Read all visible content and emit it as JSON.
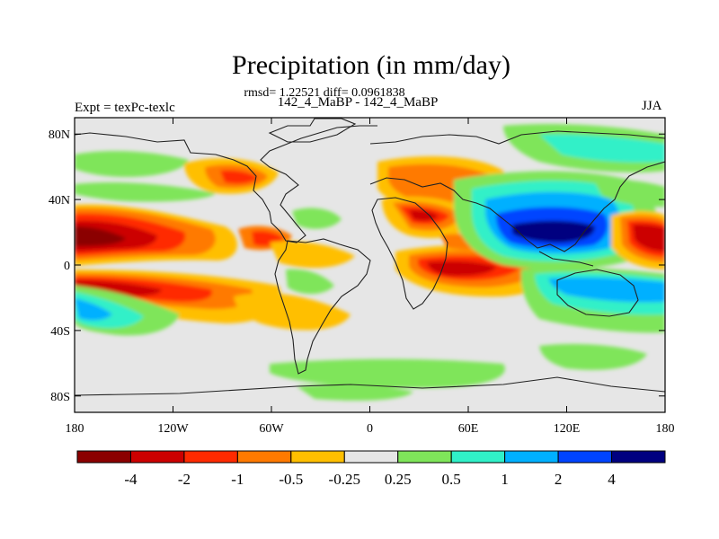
{
  "title": "Precipitation (in mm/day)",
  "stats_line": "rmsd= 1.22521 diff= 0.0961838",
  "subtitle": "142_4_MaBP - 142_4_MaBP",
  "experiment_label": "Expt = texPc-texlc",
  "season": "JJA",
  "y_axis": {
    "ticks": [
      {
        "label": "80N",
        "lat": 80
      },
      {
        "label": "40N",
        "lat": 40
      },
      {
        "label": "0",
        "lat": 0
      },
      {
        "label": "40S",
        "lat": -40
      },
      {
        "label": "80S",
        "lat": -80
      }
    ]
  },
  "x_axis": {
    "ticks": [
      {
        "label": "180",
        "lon": -180
      },
      {
        "label": "120W",
        "lon": -120
      },
      {
        "label": "60W",
        "lon": -60
      },
      {
        "label": "0",
        "lon": 0
      },
      {
        "label": "60E",
        "lon": 60
      },
      {
        "label": "120E",
        "lon": 120
      },
      {
        "label": "180",
        "lon": 180
      }
    ]
  },
  "colorbar": {
    "colors": [
      "#8b0000",
      "#cc0000",
      "#ff2a00",
      "#ff7a00",
      "#ffbf00",
      "#e6e6e6",
      "#7fe55a",
      "#30f0c8",
      "#00b0ff",
      "#0044ff",
      "#000080"
    ],
    "labels": [
      "-4",
      "-2",
      "-1",
      "-0.5",
      "-0.25",
      "0.25",
      "0.5",
      "1",
      "2",
      "4"
    ]
  },
  "chart_data": {
    "type": "heatmap",
    "title": "Precipitation (in mm/day)",
    "units": "mm/day",
    "lon_range": [
      -180,
      180
    ],
    "lat_range": [
      -90,
      90
    ],
    "levels": [
      -4,
      -2,
      -1,
      -0.5,
      -0.25,
      0.25,
      0.5,
      1,
      2,
      4
    ],
    "anomaly_regions": [
      {
        "name": "central-pacific-north-dry",
        "lon": [
          -180,
          -120
        ],
        "lat": [
          5,
          25
        ],
        "value": -4
      },
      {
        "name": "south-pacific-dry-band",
        "lon": [
          -180,
          -70
        ],
        "lat": [
          -20,
          -5
        ],
        "value": -2
      },
      {
        "name": "north-pacific-wet",
        "lon": [
          -180,
          -140
        ],
        "lat": [
          40,
          55
        ],
        "value": 0.5
      },
      {
        "name": "south-pacific-wet",
        "lon": [
          -180,
          -130
        ],
        "lat": [
          -40,
          -25
        ],
        "value": 1
      },
      {
        "name": "north-america-dry",
        "lon": [
          -120,
          -80
        ],
        "lat": [
          35,
          60
        ],
        "value": -0.5
      },
      {
        "name": "north-africa-dry",
        "lon": [
          10,
          50
        ],
        "lat": [
          15,
          35
        ],
        "value": -2
      },
      {
        "name": "east-africa-dry",
        "lon": [
          35,
          70
        ],
        "lat": [
          -5,
          10
        ],
        "value": -2
      },
      {
        "name": "south-asia-monsoon-wet",
        "lon": [
          75,
          150
        ],
        "lat": [
          10,
          30
        ],
        "value": 4
      },
      {
        "name": "west-pacific-north-dry",
        "lon": [
          150,
          180
        ],
        "lat": [
          10,
          25
        ],
        "value": -4
      },
      {
        "name": "indian-ocean-south-wet",
        "lon": [
          80,
          180
        ],
        "lat": [
          -20,
          -5
        ],
        "value": 1
      },
      {
        "name": "southern-ocean-wet",
        "lon": [
          -100,
          80
        ],
        "lat": [
          -75,
          -55
        ],
        "value": 0.5
      }
    ]
  }
}
